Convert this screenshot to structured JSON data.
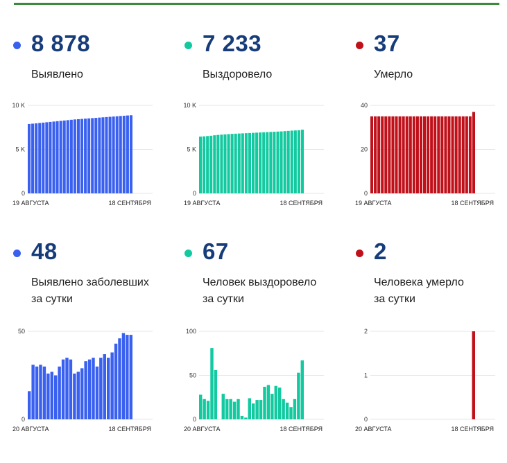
{
  "colors": {
    "blue": "#3a60f0",
    "teal": "#12c9a0",
    "red": "#c0101a",
    "value_text": "#163c7a",
    "top_line": "#3c8a3c"
  },
  "cards": [
    {
      "value": "8 878",
      "label_lines": [
        "Выявлено"
      ],
      "color": "#3a60f0"
    },
    {
      "value": "7 233",
      "label_lines": [
        "Выздоровело"
      ],
      "color": "#12c9a0"
    },
    {
      "value": "37",
      "label_lines": [
        "Умерло"
      ],
      "color": "#c0101a"
    },
    {
      "value": "48",
      "label_lines": [
        "Выявлено заболевших",
        "за сутки"
      ],
      "color": "#3a60f0"
    },
    {
      "value": "67",
      "label_lines": [
        "Человек выздоровело",
        "за сутки"
      ],
      "color": "#12c9a0"
    },
    {
      "value": "2",
      "label_lines": [
        "Человека умерло",
        "за сутки"
      ],
      "color": "#c0101a"
    }
  ],
  "chart_data": [
    {
      "type": "bar",
      "color": "#3a60f0",
      "ylim": [
        0,
        10000
      ],
      "yticks": [
        0,
        5000,
        10000
      ],
      "yticklabels": [
        "0",
        "5 K",
        "10 K"
      ],
      "xlabels": [
        "19 АВГУСТА",
        "18 СЕНТЯБРЯ"
      ],
      "values": [
        7880,
        7920,
        7960,
        8000,
        8040,
        8080,
        8120,
        8160,
        8200,
        8240,
        8280,
        8320,
        8360,
        8400,
        8430,
        8460,
        8490,
        8520,
        8550,
        8580,
        8610,
        8640,
        8670,
        8700,
        8730,
        8760,
        8790,
        8820,
        8850,
        8878
      ]
    },
    {
      "type": "bar",
      "color": "#12c9a0",
      "ylim": [
        0,
        10000
      ],
      "yticks": [
        0,
        5000,
        10000
      ],
      "yticklabels": [
        "0",
        "5 K",
        "10 K"
      ],
      "xlabels": [
        "19 АВГУСТА",
        "18 СЕНТЯБРЯ"
      ],
      "values": [
        6450,
        6480,
        6510,
        6550,
        6600,
        6640,
        6670,
        6700,
        6730,
        6760,
        6780,
        6800,
        6820,
        6840,
        6860,
        6880,
        6900,
        6920,
        6940,
        6960,
        6980,
        7000,
        7020,
        7040,
        7070,
        7100,
        7130,
        7150,
        7170,
        7233
      ]
    },
    {
      "type": "bar",
      "color": "#c0101a",
      "ylim": [
        0,
        40
      ],
      "yticks": [
        0,
        20,
        40
      ],
      "yticklabels": [
        "0",
        "20",
        "40"
      ],
      "xlabels": [
        "19 АВГУСТА",
        "18 СЕНТЯБРЯ"
      ],
      "values": [
        35,
        35,
        35,
        35,
        35,
        35,
        35,
        35,
        35,
        35,
        35,
        35,
        35,
        35,
        35,
        35,
        35,
        35,
        35,
        35,
        35,
        35,
        35,
        35,
        35,
        35,
        35,
        35,
        35,
        37
      ]
    },
    {
      "type": "bar",
      "color": "#3a60f0",
      "ylim": [
        0,
        50
      ],
      "yticks": [
        0,
        50
      ],
      "yticklabels": [
        "0",
        "50"
      ],
      "xlabels": [
        "20 АВГУСТА",
        "18 СЕНТЯБРЯ"
      ],
      "values": [
        16,
        31,
        30,
        31,
        30,
        26,
        27,
        25,
        30,
        34,
        35,
        34,
        26,
        27,
        29,
        33,
        34,
        35,
        30,
        35,
        37,
        35,
        38,
        43,
        46,
        49,
        48,
        48
      ]
    },
    {
      "type": "bar",
      "color": "#12c9a0",
      "ylim": [
        0,
        100
      ],
      "yticks": [
        0,
        50,
        100
      ],
      "yticklabels": [
        "0",
        "50",
        "100"
      ],
      "xlabels": [
        "20 АВГУСТА",
        "18 СЕНТЯБРЯ"
      ],
      "values": [
        28,
        23,
        21,
        81,
        56,
        0,
        29,
        23,
        23,
        20,
        23,
        4,
        2,
        24,
        18,
        22,
        22,
        37,
        39,
        29,
        38,
        36,
        23,
        19,
        14,
        23,
        53,
        67
      ]
    },
    {
      "type": "bar",
      "color": "#c0101a",
      "ylim": [
        0,
        2
      ],
      "yticks": [
        0,
        1,
        2
      ],
      "yticklabels": [
        "0",
        "1",
        "2"
      ],
      "xlabels": [
        "20 АВГУСТА",
        "18 СЕНТЯБРЯ"
      ],
      "values": [
        0,
        0,
        0,
        0,
        0,
        0,
        0,
        0,
        0,
        0,
        0,
        0,
        0,
        0,
        0,
        0,
        0,
        0,
        0,
        0,
        0,
        0,
        0,
        0,
        0,
        0,
        0,
        2
      ]
    }
  ]
}
